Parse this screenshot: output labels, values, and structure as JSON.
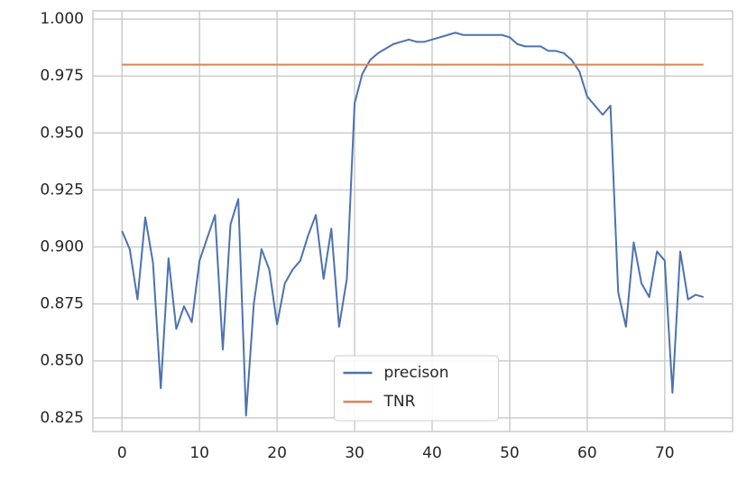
{
  "chart_data": {
    "type": "line",
    "x": [
      0,
      1,
      2,
      3,
      4,
      5,
      6,
      7,
      8,
      9,
      10,
      11,
      12,
      13,
      14,
      15,
      16,
      17,
      18,
      19,
      20,
      21,
      22,
      23,
      24,
      25,
      26,
      27,
      28,
      29,
      30,
      31,
      32,
      33,
      34,
      35,
      36,
      37,
      38,
      39,
      40,
      41,
      42,
      43,
      44,
      45,
      46,
      47,
      48,
      49,
      50,
      51,
      52,
      53,
      54,
      55,
      56,
      57,
      58,
      59,
      60,
      61,
      62,
      63,
      64,
      65,
      66,
      67,
      68,
      69,
      70,
      71,
      72,
      73,
      74,
      75
    ],
    "series": [
      {
        "name": "precison",
        "color": "#4c72b0",
        "values": [
          0.907,
          0.899,
          0.877,
          0.913,
          0.893,
          0.838,
          0.895,
          0.864,
          0.874,
          0.867,
          0.894,
          0.904,
          0.914,
          0.855,
          0.91,
          0.921,
          0.826,
          0.875,
          0.899,
          0.89,
          0.866,
          0.884,
          0.89,
          0.894,
          0.905,
          0.914,
          0.886,
          0.908,
          0.865,
          0.886,
          0.963,
          0.976,
          0.982,
          0.985,
          0.987,
          0.989,
          0.99,
          0.991,
          0.99,
          0.99,
          0.991,
          0.992,
          0.993,
          0.994,
          0.993,
          0.993,
          0.993,
          0.993,
          0.993,
          0.993,
          0.992,
          0.989,
          0.988,
          0.988,
          0.988,
          0.986,
          0.986,
          0.985,
          0.982,
          0.977,
          0.966,
          0.962,
          0.958,
          0.962,
          0.88,
          0.865,
          0.902,
          0.884,
          0.878,
          0.898,
          0.894,
          0.836,
          0.898,
          0.877,
          0.879,
          0.878
        ]
      },
      {
        "name": "TNR",
        "color": "#dd8452",
        "values": [
          0.98,
          0.98,
          0.98,
          0.98,
          0.98,
          0.98,
          0.98,
          0.98,
          0.98,
          0.98,
          0.98,
          0.98,
          0.98,
          0.98,
          0.98,
          0.98,
          0.98,
          0.98,
          0.98,
          0.98,
          0.98,
          0.98,
          0.98,
          0.98,
          0.98,
          0.98,
          0.98,
          0.98,
          0.98,
          0.98,
          0.98,
          0.98,
          0.98,
          0.98,
          0.98,
          0.98,
          0.98,
          0.98,
          0.98,
          0.98,
          0.98,
          0.98,
          0.98,
          0.98,
          0.98,
          0.98,
          0.98,
          0.98,
          0.98,
          0.98,
          0.98,
          0.98,
          0.98,
          0.98,
          0.98,
          0.98,
          0.98,
          0.98,
          0.98,
          0.98,
          0.98,
          0.98,
          0.98,
          0.98,
          0.98,
          0.98,
          0.98,
          0.98,
          0.98,
          0.98,
          0.98,
          0.98,
          0.98,
          0.98,
          0.98,
          0.98
        ]
      }
    ],
    "xlim": [
      -3.75,
      78.75
    ],
    "xticks": [
      0,
      10,
      20,
      30,
      40,
      50,
      60,
      70
    ],
    "ylim": [
      0.819,
      1.0036
    ],
    "yticks": [
      {
        "value": 1,
        "label": "1.000"
      },
      0.975,
      {
        "value": 0.95,
        "label": "0.950"
      },
      0.925,
      {
        "value": 0.9,
        "label": "0.900"
      },
      0.875,
      {
        "value": 0.85,
        "label": "0.850"
      },
      0.825
    ],
    "grid": true,
    "legend": "lower center"
  }
}
